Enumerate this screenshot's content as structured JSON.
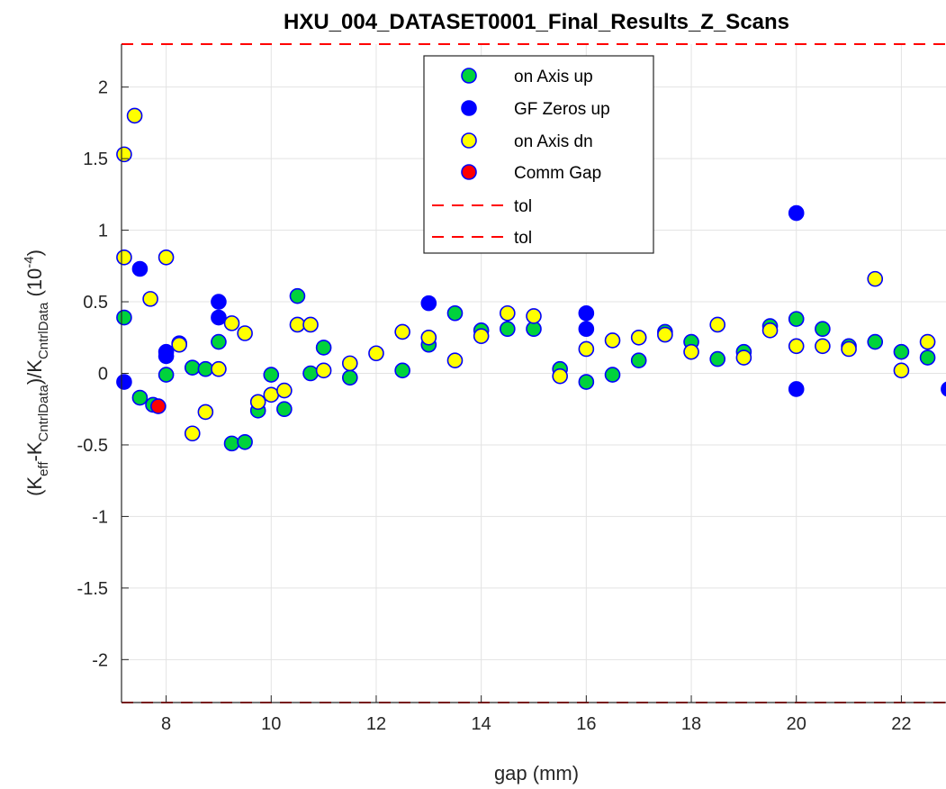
{
  "chart_data": {
    "type": "scatter",
    "title": "HXU_004_DATASET0001_Final_Results_Z_Scans",
    "xlabel": "gap (mm)",
    "ylabel": {
      "prefix": "(K",
      "sub1": "eff",
      "mid1": "-K",
      "sub2": "CntrlData",
      "mid2": ")/K",
      "sub3": "CntrlData",
      "mid3": " (10",
      "sup": "-4",
      "suffix": ")"
    },
    "xlim": [
      7.15,
      22.85
    ],
    "ylim": [
      -2.3,
      2.3
    ],
    "xticks": [
      8,
      10,
      12,
      14,
      16,
      18,
      20,
      22
    ],
    "xticklabels": [
      "8",
      "10",
      "12",
      "14",
      "16",
      "18",
      "20",
      "22"
    ],
    "yticks": [
      -2,
      -1.5,
      -1,
      -0.5,
      0,
      0.5,
      1,
      1.5,
      2
    ],
    "yticklabels": [
      "-2",
      "-1.5",
      "-1",
      "-0.5",
      "0",
      "0.5",
      "1",
      "1.5",
      "2"
    ],
    "grid": true,
    "legend_position": "top-center",
    "series": [
      {
        "name": "on Axis up",
        "face": "#00d23c",
        "edge": "#0000ff",
        "x": [
          7.2,
          7.5,
          7.75,
          8.0,
          8.25,
          8.5,
          8.75,
          9.0,
          9.25,
          9.5,
          9.75,
          10.0,
          10.25,
          10.5,
          10.75,
          11.0,
          11.5,
          12.5,
          13.0,
          13.5,
          14.0,
          14.5,
          15.0,
          15.5,
          16.0,
          16.5,
          17.0,
          17.5,
          18.0,
          18.5,
          19.0,
          19.5,
          20.0,
          20.5,
          21.0,
          21.5,
          22.0,
          22.5
        ],
        "y": [
          0.39,
          -0.17,
          -0.22,
          -0.01,
          0.21,
          0.04,
          0.03,
          0.22,
          -0.49,
          -0.48,
          -0.26,
          -0.01,
          -0.25,
          0.54,
          0.0,
          0.18,
          -0.03,
          0.02,
          0.2,
          0.42,
          0.3,
          0.31,
          0.31,
          0.03,
          -0.06,
          -0.01,
          0.09,
          0.29,
          0.22,
          0.1,
          0.15,
          0.33,
          0.38,
          0.31,
          0.19,
          0.22,
          0.15,
          0.11
        ]
      },
      {
        "name": "GF Zeros up",
        "face": "#0000ff",
        "edge": "#0000ff",
        "x": [
          7.2,
          7.5,
          8.0,
          8.0,
          9.0,
          9.0,
          13.0,
          16.0,
          16.0,
          20.0,
          20.0,
          22.9
        ],
        "y": [
          -0.06,
          0.73,
          0.15,
          0.12,
          0.5,
          0.39,
          0.49,
          0.42,
          0.31,
          1.12,
          -0.11,
          -0.11
        ]
      },
      {
        "name": "on Axis dn",
        "face": "#ffff00",
        "edge": "#0000ff",
        "x": [
          7.2,
          7.2,
          7.4,
          7.7,
          8.0,
          8.25,
          8.5,
          8.75,
          9.0,
          9.25,
          9.5,
          9.75,
          10.0,
          10.25,
          10.5,
          10.75,
          11.0,
          11.5,
          12.0,
          12.5,
          13.0,
          13.5,
          14.0,
          14.5,
          15.0,
          15.5,
          16.0,
          16.5,
          17.0,
          17.5,
          18.0,
          18.5,
          19.0,
          19.5,
          20.0,
          20.5,
          21.0,
          21.5,
          22.0,
          22.5
        ],
        "y": [
          1.53,
          0.81,
          1.8,
          0.52,
          0.81,
          0.2,
          -0.42,
          -0.27,
          0.03,
          0.35,
          0.28,
          -0.2,
          -0.15,
          -0.12,
          0.34,
          0.34,
          0.02,
          0.07,
          0.14,
          0.29,
          0.25,
          0.09,
          0.26,
          0.42,
          0.4,
          -0.02,
          0.17,
          0.23,
          0.25,
          0.27,
          0.15,
          0.34,
          0.11,
          0.3,
          0.19,
          0.19,
          0.17,
          0.66,
          0.02,
          0.22
        ]
      },
      {
        "name": "Comm Gap",
        "face": "#ff0000",
        "edge": "#0000ff",
        "x": [
          7.85
        ],
        "y": [
          -0.23
        ]
      }
    ],
    "lines": [
      {
        "name": "tol",
        "y": 2.3,
        "color": "#ff0000",
        "style": "dashed"
      },
      {
        "name": "tol",
        "y": -2.3,
        "color": "#ff0000",
        "style": "dashed"
      }
    ]
  }
}
